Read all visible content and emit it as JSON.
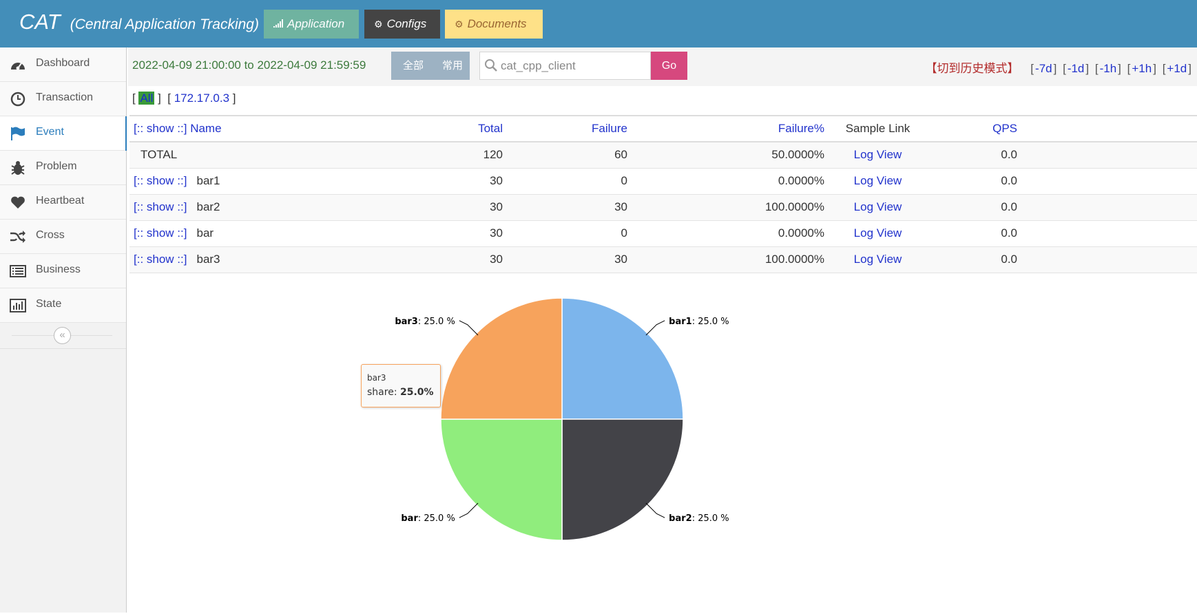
{
  "header": {
    "brand": "CAT",
    "brand_full": "(Central Application Tracking)",
    "nav": [
      {
        "label": "Application",
        "icon": "signal-icon"
      },
      {
        "label": "Configs",
        "icon": "cogs-icon"
      },
      {
        "label": "Documents",
        "icon": "cogs-icon"
      }
    ]
  },
  "sidebar": {
    "items": [
      {
        "label": "Dashboard",
        "icon": "dashboard-icon"
      },
      {
        "label": "Transaction",
        "icon": "clock-icon"
      },
      {
        "label": "Event",
        "icon": "flag-icon",
        "active": true
      },
      {
        "label": "Problem",
        "icon": "bug-icon"
      },
      {
        "label": "Heartbeat",
        "icon": "heart-icon"
      },
      {
        "label": "Cross",
        "icon": "random-icon"
      },
      {
        "label": "Business",
        "icon": "list-icon"
      },
      {
        "label": "State",
        "icon": "bar-chart-icon"
      }
    ],
    "collapse_glyph": "«"
  },
  "toolbar": {
    "date_range": "2022-04-09 21:00:00 to 2022-04-09 21:59:59",
    "seg_all": "全部",
    "seg_common": "常用",
    "search_value": "cat_cpp_client",
    "go_label": "Go",
    "history_mode": "【切到历史模式】",
    "time_links": [
      "-7d",
      "-1d",
      "-1h",
      "+1h",
      "+1d"
    ]
  },
  "ip_filter": {
    "all": "All",
    "ip": "172.17.0.3"
  },
  "table": {
    "headers": {
      "name": "[:: show ::] Name",
      "total": "Total",
      "failure": "Failure",
      "failure_pct": "Failure%",
      "sample": "Sample Link",
      "qps": "QPS"
    },
    "total_row": {
      "name": "TOTAL",
      "total": "120",
      "failure": "60",
      "failure_pct": "50.0000%",
      "sample": "Log View",
      "qps": "0.0"
    },
    "show_label": "[:: show ::]",
    "rows": [
      {
        "name": "bar1",
        "total": "30",
        "failure": "0",
        "failure_pct": "0.0000%",
        "sample": "Log View",
        "qps": "0.0"
      },
      {
        "name": "bar2",
        "total": "30",
        "failure": "30",
        "failure_pct": "100.0000%",
        "sample": "Log View",
        "qps": "0.0"
      },
      {
        "name": "bar",
        "total": "30",
        "failure": "0",
        "failure_pct": "0.0000%",
        "sample": "Log View",
        "qps": "0.0"
      },
      {
        "name": "bar3",
        "total": "30",
        "failure": "30",
        "failure_pct": "100.0000%",
        "sample": "Log View",
        "qps": "0.0"
      }
    ]
  },
  "chart_data": {
    "type": "pie",
    "slices": [
      {
        "name": "bar1",
        "value": 25.0,
        "color": "#7cb5ec"
      },
      {
        "name": "bar2",
        "value": 25.0,
        "color": "#434348"
      },
      {
        "name": "bar",
        "value": 25.0,
        "color": "#90ed7d"
      },
      {
        "name": "bar3",
        "value": 25.0,
        "color": "#f7a35c"
      }
    ],
    "tooltip": {
      "name": "bar3",
      "label": "share",
      "value": "25.0%"
    }
  }
}
